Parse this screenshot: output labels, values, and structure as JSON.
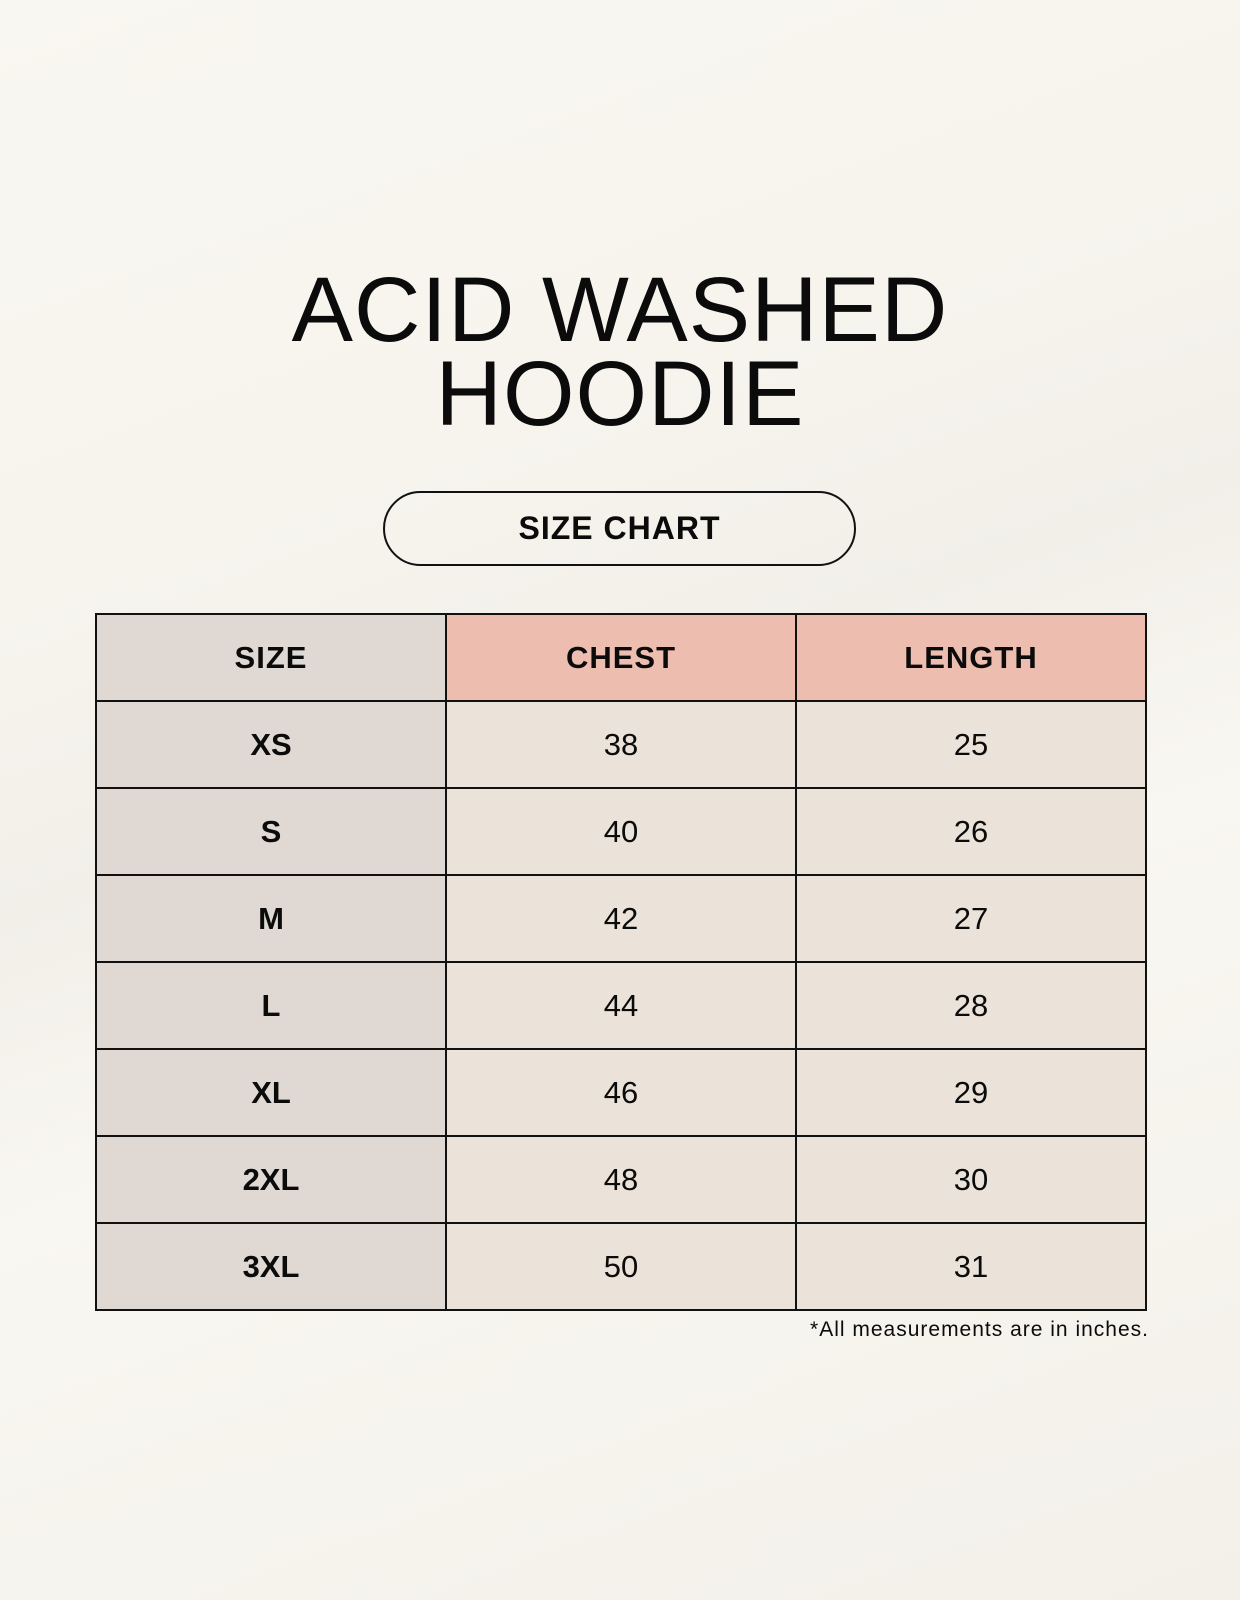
{
  "title": {
    "line1": "ACID WASHED",
    "line2": "HOODIE"
  },
  "badge": "SIZE CHART",
  "table": {
    "headers": [
      "SIZE",
      "CHEST",
      "LENGTH"
    ],
    "rows": [
      [
        "XS",
        "38",
        "25"
      ],
      [
        "S",
        "40",
        "26"
      ],
      [
        "M",
        "42",
        "27"
      ],
      [
        "L",
        "44",
        "28"
      ],
      [
        "XL",
        "46",
        "29"
      ],
      [
        "2XL",
        "48",
        "30"
      ],
      [
        "3XL",
        "50",
        "31"
      ]
    ]
  },
  "footnote": "*All measurements are in inches.",
  "colors": {
    "size_column": "#e0d9d3",
    "header_accent": "#edbdb0",
    "cell": "#ebe3d9"
  }
}
